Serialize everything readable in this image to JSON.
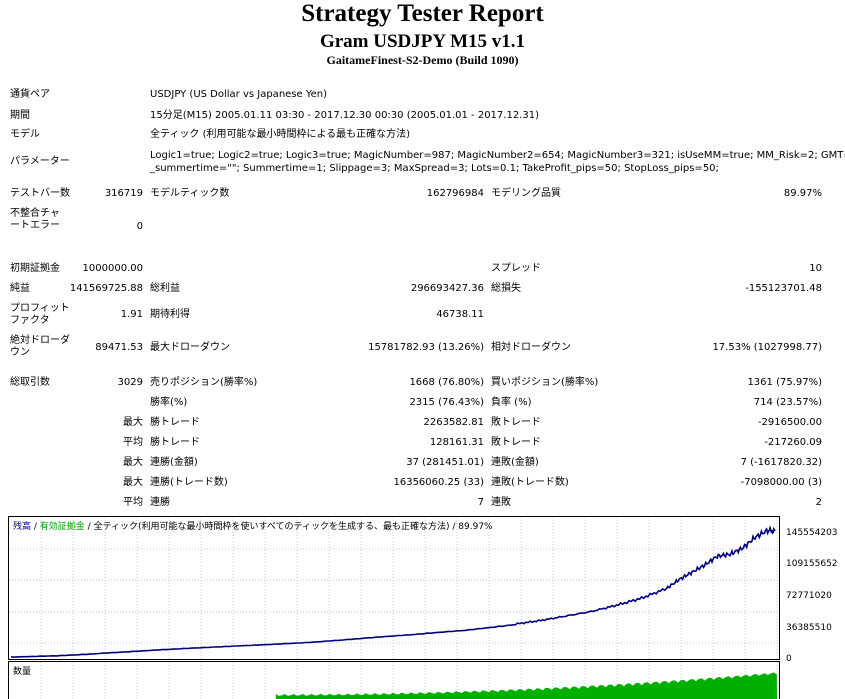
{
  "header": {
    "title": "Strategy Tester Report",
    "subtitle": "Gram USDJPY M15 v1.1",
    "server": "GaitameFinest-S2-Demo (Build 1090)"
  },
  "info": {
    "pair_label": "通貨ペア",
    "pair_value": "USDJPY (US Dollar vs Japanese Yen)",
    "period_label": "期間",
    "period_value": "15分足(M15) 2005.01.11 03:30 - 2017.12.30 00:30 (2005.01.01 - 2017.12.31)",
    "model_label": "モデル",
    "model_value": "全ティック (利用可能な最小時間枠による最も正確な方法)",
    "params_label": "パラメーター",
    "params_line1": "Logic1=true; Logic2=true; Logic3=true; MagicNumber=987; MagicNumber2=654; MagicNumber3=321; isUseMM=true; MM_Risk=2; GMT=2;",
    "params_line2": "_summertime=\"\"; Summertime=1; Slippage=3; MaxSpread=3; Lots=0.1; TakeProfit_pips=50; StopLoss_pips=50;"
  },
  "stats": {
    "bars_label": "テストバー数",
    "bars_value": "316719",
    "ticks_label": "モデルティック数",
    "ticks_value": "162796984",
    "quality_label": "モデリング品質",
    "quality_value": "89.97%",
    "mismatch_label": "不整合チャートエラー",
    "mismatch_value": "0",
    "deposit_label": "初期証拠金",
    "deposit_value": "1000000.00",
    "spread_label": "スプレッド",
    "spread_value": "10",
    "net_label": "純益",
    "net_value": "141569725.88",
    "gross_profit_label": "総利益",
    "gross_profit_value": "296693427.36",
    "gross_loss_label": "総損失",
    "gross_loss_value": "-155123701.48",
    "pf_label": "プロフィットファクタ",
    "pf_value": "1.91",
    "expected_label": "期待利得",
    "expected_value": "46738.11",
    "abs_dd_label": "絶対ドローダウン",
    "abs_dd_value": "89471.53",
    "max_dd_label": "最大ドローダウン",
    "max_dd_value": "15781782.93 (13.26%)",
    "rel_dd_label": "相対ドローダウン",
    "rel_dd_value": "17.53% (1027998.77)",
    "total_label": "総取引数",
    "total_value": "3029",
    "short_label": "売りポジション(勝率%)",
    "short_value": "1668 (76.80%)",
    "long_label": "買いポジション(勝率%)",
    "long_value": "1361 (75.97%)",
    "winrate_label": "勝率(%)",
    "winrate_value": "2315 (76.43%)",
    "lossrate_label": "負率 (%)",
    "lossrate_value": "714 (23.57%)",
    "max_label": "最大",
    "avg_label": "平均",
    "largest_win_label": "勝トレード",
    "largest_win_value": "2263582.81",
    "largest_loss_label": "敗トレード",
    "largest_loss_value": "-2916500.00",
    "avg_win_label": "勝トレード",
    "avg_win_value": "128161.31",
    "avg_loss_label": "敗トレード",
    "avg_loss_value": "-217260.09",
    "max_cons_wins_money_label": "連勝(金額)",
    "max_cons_wins_money_value": "37 (281451.01)",
    "max_cons_losses_money_label": "連敗(金額)",
    "max_cons_losses_money_value": "7 (-1617820.32)",
    "max_cons_profit_label": "連勝(トレード数)",
    "max_cons_profit_value": "16356060.25 (33)",
    "max_cons_loss_label": "連敗(トレード数)",
    "max_cons_loss_value": "-7098000.00 (3)",
    "avg_cons_wins_label": "連勝",
    "avg_cons_wins_value": "7",
    "avg_cons_losses_label": "連敗",
    "avg_cons_losses_value": "2"
  },
  "chart_data": {
    "type": "line",
    "legend": {
      "balance": "残高",
      "sep1": " / ",
      "equity": "有効証拠金",
      "sep2": " / ",
      "model": "全ティック(利用可能な最小時間枠を使いすべてのティックを生成する、最も正確な方法)",
      "sep3": " / ",
      "quality": "89.97%"
    },
    "volume_label": "数量",
    "y_ticks": [
      "145554203",
      "109155652",
      "72771020",
      "36385510",
      "0"
    ],
    "ylim": [
      0,
      145554203
    ],
    "series": [
      {
        "name": "残高",
        "x": [
          0,
          200,
          400,
          600,
          800,
          1000,
          1200,
          1400,
          1600,
          1800,
          2000,
          2100,
          2200,
          2300,
          2400,
          2500,
          2600,
          2650,
          2700,
          2750,
          2800,
          2850,
          2900,
          2950,
          3000,
          3029
        ],
        "values": [
          1000000,
          3000000,
          6000000,
          9000000,
          12000000,
          15000000,
          18000000,
          22000000,
          26000000,
          31000000,
          38000000,
          42000000,
          47000000,
          52000000,
          59000000,
          67000000,
          78000000,
          88000000,
          96000000,
          104000000,
          114000000,
          116000000,
          123000000,
          135000000,
          143000000,
          142000000
        ]
      }
    ],
    "volume": {
      "x_start": 1050,
      "values_max": 1
    }
  },
  "colors": {
    "balance": "#000080",
    "volume": "#00b000",
    "equity_legend": "#00a000"
  }
}
